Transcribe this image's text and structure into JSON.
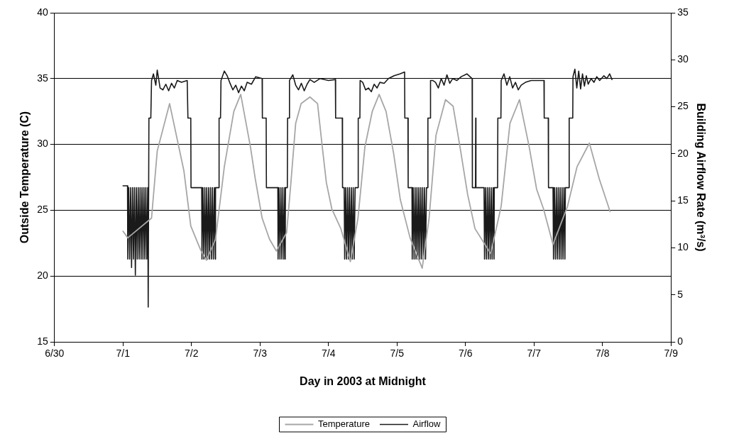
{
  "chart_data": {
    "type": "line",
    "xlabel": "Day in 2003 at Midnight",
    "ylabel": "Outside Temperature (C)",
    "y2label": "Building Airflow Rate (m³/s)",
    "xlim": [
      "2003-06-30",
      "2003-07-09"
    ],
    "xticks": [
      {
        "value": "2003-06-30",
        "label": "6/30"
      },
      {
        "value": "2003-07-01",
        "label": "7/1"
      },
      {
        "value": "2003-07-02",
        "label": "7/2"
      },
      {
        "value": "2003-07-03",
        "label": "7/3"
      },
      {
        "value": "2003-07-04",
        "label": "7/4"
      },
      {
        "value": "2003-07-05",
        "label": "7/5"
      },
      {
        "value": "2003-07-06",
        "label": "7/6"
      },
      {
        "value": "2003-07-07",
        "label": "7/7"
      },
      {
        "value": "2003-07-08",
        "label": "7/8"
      },
      {
        "value": "2003-07-09",
        "label": "7/9"
      }
    ],
    "ylim": [
      15,
      40
    ],
    "yticks": [
      15,
      20,
      25,
      30,
      35,
      40
    ],
    "y2lim": [
      0,
      35
    ],
    "y2ticks": [
      0,
      5,
      10,
      15,
      20,
      25,
      30,
      35
    ],
    "grid": "y",
    "legend": "bottom",
    "marker": "none",
    "line_style": "solid",
    "series": [
      {
        "name": "Temperature",
        "color": "#a6a6a6",
        "x": [
          "2003-07-01T00:00",
          "2003-07-01T01:40",
          "2003-07-01T10:00",
          "2003-07-01T12:00",
          "2003-07-01T16:20",
          "2003-07-01T21:20",
          "2003-07-01T23:45",
          "2003-07-02T03:10",
          "2003-07-02T05:15",
          "2003-07-02T08:25",
          "2003-07-02T11:30",
          "2003-07-02T14:50",
          "2003-07-02T17:15",
          "2003-07-02T20:40",
          "2003-07-02T22:20",
          "2003-07-03T00:45",
          "2003-07-03T03:20",
          "2003-07-03T05:45",
          "2003-07-03T09:20",
          "2003-07-03T10:50",
          "2003-07-03T12:30",
          "2003-07-03T14:25",
          "2003-07-03T17:30",
          "2003-07-03T20:10",
          "2003-07-03T21:50",
          "2003-07-03T23:15",
          "2003-07-04T01:10",
          "2003-07-04T04:20",
          "2003-07-04T07:40",
          "2003-07-04T10:20",
          "2003-07-04T12:45",
          "2003-07-04T15:20",
          "2003-07-04T17:45",
          "2003-07-04T20:10",
          "2003-07-04T22:50",
          "2003-07-05T01:10",
          "2003-07-05T04:35",
          "2003-07-05T08:50",
          "2003-07-05T11:15",
          "2003-07-05T13:40",
          "2003-07-05T17:00",
          "2003-07-05T19:40",
          "2003-07-05T22:05",
          "2003-07-06T00:45",
          "2003-07-06T03:20",
          "2003-07-06T06:30",
          "2003-07-06T08:50",
          "2003-07-06T12:30",
          "2003-07-06T15:35",
          "2003-07-06T18:55",
          "2003-07-06T22:20",
          "2003-07-07T00:55",
          "2003-07-07T03:20",
          "2003-07-07T06:40",
          "2003-07-07T11:45",
          "2003-07-07T15:05",
          "2003-07-07T19:25",
          "2003-07-07T22:50",
          "2003-07-08T02:40"
        ],
        "values": [
          23.4,
          22.9,
          24.4,
          29.5,
          33.1,
          28.0,
          23.8,
          22.0,
          21.2,
          22.8,
          28.3,
          32.5,
          33.8,
          29.8,
          27.4,
          24.4,
          22.8,
          21.9,
          23.3,
          27.1,
          31.6,
          33.1,
          33.6,
          33.1,
          29.8,
          27.1,
          25.1,
          23.6,
          21.1,
          24.4,
          29.8,
          32.5,
          33.8,
          32.5,
          29.3,
          25.8,
          22.9,
          20.6,
          24.4,
          30.7,
          33.4,
          32.9,
          29.8,
          26.2,
          23.6,
          22.5,
          21.7,
          25.3,
          31.6,
          33.4,
          29.8,
          26.6,
          25.1,
          22.4,
          25.3,
          28.3,
          30.1,
          27.4,
          24.9
        ]
      },
      {
        "name": "Airflow",
        "color": "#1a1a1a",
        "axis": "y2",
        "x": [
          "2003-07-01T00:00",
          "2003-07-01T01:35",
          "2003-07-01T01:40",
          "2003-07-01T02:00",
          "2003-07-01T02:20",
          "2003-07-01T02:40",
          "2003-07-01T03:00",
          "2003-07-01T03:20",
          "2003-07-01T03:40",
          "2003-07-01T04:00",
          "2003-07-01T04:20",
          "2003-07-01T04:40",
          "2003-07-01T05:00",
          "2003-07-01T05:20",
          "2003-07-01T05:40",
          "2003-07-01T06:00",
          "2003-07-01T06:20",
          "2003-07-01T06:40",
          "2003-07-01T07:00",
          "2003-07-01T07:20",
          "2003-07-01T07:40",
          "2003-07-01T08:00",
          "2003-07-01T08:20",
          "2003-07-01T08:40",
          "2003-07-01T08:50",
          "2003-07-01T09:05",
          "2003-07-01T09:45",
          "2003-07-01T10:00",
          "2003-07-01T10:40",
          "2003-07-01T11:30",
          "2003-07-01T12:00",
          "2003-07-01T13:00",
          "2003-07-01T14:00",
          "2003-07-01T15:00",
          "2003-07-01T16:00",
          "2003-07-01T17:00",
          "2003-07-01T18:00",
          "2003-07-01T19:00",
          "2003-07-01T20:30",
          "2003-07-01T22:30",
          "2003-07-01T22:45",
          "2003-07-01T23:45",
          "2003-07-01T23:50",
          "2003-07-02T03:35",
          "2003-07-02T03:40",
          "2003-07-02T04:00",
          "2003-07-02T04:20",
          "2003-07-02T04:40",
          "2003-07-02T05:00",
          "2003-07-02T05:20",
          "2003-07-02T05:40",
          "2003-07-02T06:00",
          "2003-07-02T06:20",
          "2003-07-02T06:40",
          "2003-07-02T07:00",
          "2003-07-02T07:20",
          "2003-07-02T07:40",
          "2003-07-02T08:00",
          "2003-07-02T08:20",
          "2003-07-02T08:25",
          "2003-07-02T09:35",
          "2003-07-02T09:40",
          "2003-07-02T10:10",
          "2003-07-02T10:20",
          "2003-07-02T11:30",
          "2003-07-02T12:30",
          "2003-07-02T13:30",
          "2003-07-02T14:30",
          "2003-07-02T15:30",
          "2003-07-02T16:30",
          "2003-07-02T17:30",
          "2003-07-02T18:30",
          "2003-07-02T19:30",
          "2003-07-02T21:00",
          "2003-07-02T22:30",
          "2003-07-03T00:45",
          "2003-07-03T00:50",
          "2003-07-03T02:10",
          "2003-07-03T02:15",
          "2003-07-03T06:15",
          "2003-07-03T06:20",
          "2003-07-03T06:40",
          "2003-07-03T07:00",
          "2003-07-03T07:20",
          "2003-07-03T07:40",
          "2003-07-03T08:00",
          "2003-07-03T08:20",
          "2003-07-03T08:40",
          "2003-07-03T08:50",
          "2003-07-03T08:55",
          "2003-07-03T09:35",
          "2003-07-03T09:40",
          "2003-07-03T10:15",
          "2003-07-03T10:20",
          "2003-07-03T11:30",
          "2003-07-03T12:30",
          "2003-07-03T13:30",
          "2003-07-03T14:30",
          "2003-07-03T15:30",
          "2003-07-03T16:30",
          "2003-07-03T17:30",
          "2003-07-03T19:00",
          "2003-07-03T21:00",
          "2003-07-04T00:00",
          "2003-07-04T02:25",
          "2003-07-04T02:30",
          "2003-07-04T04:50",
          "2003-07-04T04:55",
          "2003-07-04T05:30",
          "2003-07-04T05:40",
          "2003-07-04T06:00",
          "2003-07-04T06:20",
          "2003-07-04T06:40",
          "2003-07-04T07:00",
          "2003-07-04T07:20",
          "2003-07-04T07:40",
          "2003-07-04T08:00",
          "2003-07-04T08:20",
          "2003-07-04T08:40",
          "2003-07-04T09:00",
          "2003-07-04T09:20",
          "2003-07-04T10:20",
          "2003-07-04T10:25",
          "2003-07-04T11:00",
          "2003-07-04T11:05",
          "2003-07-04T12:00",
          "2003-07-04T13:00",
          "2003-07-04T14:00",
          "2003-07-04T15:00",
          "2003-07-04T16:00",
          "2003-07-04T17:00",
          "2003-07-04T18:00",
          "2003-07-04T19:30",
          "2003-07-04T21:00",
          "2003-07-04T23:00",
          "2003-07-05T01:00",
          "2003-07-05T02:40",
          "2003-07-05T02:45",
          "2003-07-05T03:50",
          "2003-07-05T03:55",
          "2003-07-05T05:15",
          "2003-07-05T05:20",
          "2003-07-05T05:40",
          "2003-07-05T06:00",
          "2003-07-05T06:20",
          "2003-07-05T06:40",
          "2003-07-05T07:00",
          "2003-07-05T07:20",
          "2003-07-05T07:40",
          "2003-07-05T08:00",
          "2003-07-05T08:20",
          "2003-07-05T08:40",
          "2003-07-05T09:00",
          "2003-07-05T09:20",
          "2003-07-05T09:40",
          "2003-07-05T10:00",
          "2003-07-05T10:20",
          "2003-07-05T10:45",
          "2003-07-05T10:50",
          "2003-07-05T11:40",
          "2003-07-05T11:45",
          "2003-07-05T12:30",
          "2003-07-05T13:30",
          "2003-07-05T14:30",
          "2003-07-05T15:30",
          "2003-07-05T16:30",
          "2003-07-05T17:30",
          "2003-07-05T18:30",
          "2003-07-05T19:30",
          "2003-07-05T21:00",
          "2003-07-05T22:30",
          "2003-07-06T00:30",
          "2003-07-06T02:20",
          "2003-07-06T02:25",
          "2003-07-06T03:30",
          "2003-07-06T03:35",
          "2003-07-06T03:40",
          "2003-07-06T06:30",
          "2003-07-06T06:40",
          "2003-07-06T07:00",
          "2003-07-06T07:20",
          "2003-07-06T07:40",
          "2003-07-06T08:00",
          "2003-07-06T08:20",
          "2003-07-06T08:40",
          "2003-07-06T09:00",
          "2003-07-06T09:20",
          "2003-07-06T09:40",
          "2003-07-06T10:00",
          "2003-07-06T10:05",
          "2003-07-06T11:15",
          "2003-07-06T11:20",
          "2003-07-06T12:25",
          "2003-07-06T12:30",
          "2003-07-06T13:30",
          "2003-07-06T14:30",
          "2003-07-06T15:30",
          "2003-07-06T16:30",
          "2003-07-06T17:30",
          "2003-07-06T18:30",
          "2003-07-06T19:30",
          "2003-07-06T21:00",
          "2003-07-06T23:00",
          "2003-07-07T03:30",
          "2003-07-07T03:35",
          "2003-07-07T05:00",
          "2003-07-07T05:05",
          "2003-07-07T06:40",
          "2003-07-07T06:50",
          "2003-07-07T07:10",
          "2003-07-07T07:30",
          "2003-07-07T07:50",
          "2003-07-07T08:10",
          "2003-07-07T08:30",
          "2003-07-07T08:50",
          "2003-07-07T09:10",
          "2003-07-07T09:30",
          "2003-07-07T09:50",
          "2003-07-07T10:10",
          "2003-07-07T10:30",
          "2003-07-07T10:50",
          "2003-07-07T11:00",
          "2003-07-07T12:15",
          "2003-07-07T12:20",
          "2003-07-07T13:35",
          "2003-07-07T13:40",
          "2003-07-07T14:20",
          "2003-07-07T15:00",
          "2003-07-07T15:40",
          "2003-07-07T16:20",
          "2003-07-07T17:00",
          "2003-07-07T17:40",
          "2003-07-07T18:20",
          "2003-07-07T19:00",
          "2003-07-07T20:00",
          "2003-07-07T21:00",
          "2003-07-07T22:00",
          "2003-07-07T23:00",
          "2003-07-08T00:30",
          "2003-07-08T01:30",
          "2003-07-08T02:30",
          "2003-07-08T03:20"
        ],
        "values": [
          16.6,
          16.6,
          8.8,
          16.4,
          8.8,
          16.4,
          7.9,
          16.4,
          8.8,
          16.4,
          7.1,
          16.4,
          8.8,
          16.4,
          8.8,
          16.4,
          8.8,
          16.4,
          8.8,
          16.4,
          8.8,
          16.4,
          8.8,
          16.4,
          3.7,
          23.8,
          23.8,
          27.8,
          28.5,
          27.3,
          28.9,
          27.0,
          26.8,
          27.4,
          26.7,
          27.5,
          27.0,
          27.8,
          27.6,
          27.8,
          23.8,
          23.8,
          16.4,
          16.4,
          8.8,
          16.4,
          8.8,
          16.4,
          8.8,
          16.4,
          8.8,
          16.4,
          8.8,
          16.4,
          8.8,
          16.4,
          8.8,
          16.4,
          8.8,
          16.4,
          16.4,
          23.8,
          23.8,
          27.8,
          28.8,
          28.3,
          27.5,
          26.8,
          27.3,
          26.5,
          27.2,
          26.7,
          27.6,
          27.4,
          28.2,
          28.0,
          23.8,
          23.8,
          16.4,
          16.4,
          8.8,
          16.4,
          8.8,
          16.4,
          8.8,
          16.4,
          8.8,
          16.4,
          8.8,
          16.4,
          16.4,
          23.8,
          23.8,
          27.8,
          28.4,
          27.3,
          26.8,
          27.5,
          26.7,
          27.4,
          27.9,
          27.6,
          28.0,
          27.8,
          27.9,
          23.8,
          23.8,
          16.4,
          16.4,
          8.8,
          16.4,
          8.8,
          16.4,
          8.8,
          16.4,
          8.8,
          16.4,
          8.8,
          16.4,
          8.8,
          16.4,
          16.4,
          23.8,
          23.8,
          27.8,
          27.6,
          26.8,
          27.0,
          26.6,
          27.4,
          27.0,
          27.6,
          27.5,
          28.0,
          28.3,
          28.5,
          28.7,
          23.8,
          23.8,
          16.4,
          16.4,
          8.8,
          16.4,
          8.8,
          16.4,
          8.8,
          16.4,
          8.8,
          16.4,
          8.8,
          16.4,
          8.8,
          16.4,
          8.8,
          16.4,
          8.8,
          16.4,
          16.4,
          23.8,
          23.8,
          27.8,
          27.8,
          27.6,
          27.0,
          28.0,
          27.3,
          28.4,
          27.5,
          28.0,
          27.8,
          28.2,
          28.5,
          28.0,
          16.4,
          16.4,
          23.8,
          16.4,
          16.4,
          8.8,
          16.4,
          8.8,
          16.4,
          8.8,
          16.4,
          8.8,
          16.4,
          8.8,
          16.4,
          8.8,
          16.4,
          16.4,
          23.8,
          23.8,
          27.8,
          28.5,
          27.3,
          28.2,
          27.0,
          27.6,
          26.8,
          27.3,
          27.6,
          27.8,
          27.8,
          23.8,
          23.8,
          16.4,
          16.4,
          8.8,
          16.4,
          8.8,
          16.4,
          8.8,
          16.4,
          8.8,
          16.4,
          8.8,
          16.4,
          8.8,
          16.4,
          8.8,
          16.4,
          16.4,
          23.8,
          23.8,
          28.2,
          29.0,
          27.0,
          28.8,
          26.9,
          28.5,
          27.2,
          28.3,
          27.4,
          28.0,
          27.6,
          28.2,
          27.8,
          28.3,
          28.0,
          28.5,
          27.9
        ]
      }
    ]
  }
}
